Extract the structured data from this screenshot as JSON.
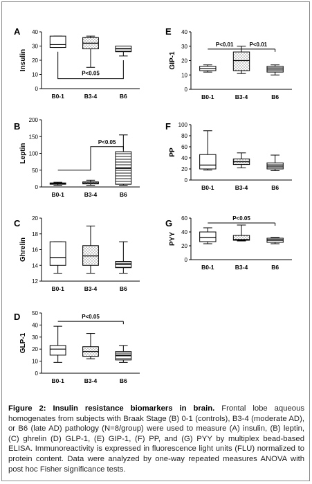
{
  "figure": {
    "caption_title": "Figure 2: Insulin resistance biomarkers in brain.",
    "caption_body": " Frontal lobe aqueous homogenates from subjects with Braak Stage (B) 0-1 (controls), B3-4 (moderate AD), or B6 (late AD) pathology (N=8/group) were used to measure (A) insulin, (B) leptin, (C) ghrelin (D) GLP-1, (E) GIP-1, (F) PP, and (G) PYY by multiplex bead-based ELISA. Immunoreactivity is expressed in fluorescence light units (FLU) normalized to protein content. Data were analyzed by one-way repeated measures ANOVA with post hoc Fisher significance tests."
  },
  "chart_data": [
    {
      "type": "boxplot",
      "letter": "A",
      "ylabel": "Insulin",
      "ylim": [
        0,
        40
      ],
      "yticks": [
        0,
        10,
        20,
        30,
        40
      ],
      "categories": [
        "B0-1",
        "B3-4",
        "B6"
      ],
      "series": [
        {
          "category": "B0-1",
          "min": 29,
          "q1": 29,
          "median": 31,
          "q3": 37,
          "max": 37
        },
        {
          "category": "B3-4",
          "min": 15,
          "q1": 28,
          "median": 32,
          "q3": 36,
          "max": 37
        },
        {
          "category": "B6",
          "min": 23,
          "q1": 26,
          "median": 28,
          "q3": 30,
          "max": 30
        }
      ],
      "annotations": [
        {
          "text": "P<0.05",
          "from": "B0-1",
          "to": "B6",
          "y": 7,
          "style": "bracket-down"
        }
      ]
    },
    {
      "type": "boxplot",
      "letter": "B",
      "ylabel": "Leptin",
      "ylim": [
        0,
        200
      ],
      "yticks": [
        0,
        50,
        100,
        150,
        200
      ],
      "categories": [
        "B0-1",
        "B3-4",
        "B6"
      ],
      "series": [
        {
          "category": "B0-1",
          "min": 5,
          "q1": 8,
          "median": 10,
          "q3": 12,
          "max": 14
        },
        {
          "category": "B3-4",
          "min": 5,
          "q1": 9,
          "median": 12,
          "q3": 15,
          "max": 20
        },
        {
          "category": "B6",
          "min": 5,
          "q1": 8,
          "median": 55,
          "q3": 105,
          "max": 155
        }
      ],
      "annotations": [
        {
          "text": "P<0.05",
          "from": "B0-1",
          "to": "B6",
          "y": 120,
          "style": "step"
        }
      ]
    },
    {
      "type": "boxplot",
      "letter": "C",
      "ylabel": "Ghrelin",
      "ylim": [
        12,
        20
      ],
      "yticks": [
        12,
        14,
        16,
        18,
        20
      ],
      "categories": [
        "B0-1",
        "B3-4",
        "B6"
      ],
      "series": [
        {
          "category": "B0-1",
          "min": 13,
          "q1": 14,
          "median": 15,
          "q3": 17,
          "max": 17
        },
        {
          "category": "B3-4",
          "min": 13,
          "q1": 14,
          "median": 15.2,
          "q3": 16.5,
          "max": 19
        },
        {
          "category": "B6",
          "min": 13,
          "q1": 13.7,
          "median": 14.2,
          "q3": 14.5,
          "max": 17
        }
      ],
      "annotations": []
    },
    {
      "type": "boxplot",
      "letter": "D",
      "ylabel": "GLP-1",
      "ylim": [
        0,
        50
      ],
      "yticks": [
        0,
        10,
        20,
        30,
        40,
        50
      ],
      "categories": [
        "B0-1",
        "B3-4",
        "B6"
      ],
      "series": [
        {
          "category": "B0-1",
          "min": 9,
          "q1": 15,
          "median": 20,
          "q3": 23,
          "max": 39
        },
        {
          "category": "B3-4",
          "min": 12,
          "q1": 14,
          "median": 18,
          "q3": 22,
          "max": 33
        },
        {
          "category": "B6",
          "min": 9,
          "q1": 11,
          "median": 15,
          "q3": 18,
          "max": 23
        }
      ],
      "annotations": [
        {
          "text": "P<0.05",
          "from": "B0-1",
          "to": "B6",
          "y": 43,
          "style": "line"
        }
      ]
    },
    {
      "type": "boxplot",
      "letter": "E",
      "ylabel": "GIP-1",
      "ylim": [
        0,
        40
      ],
      "yticks": [
        0,
        10,
        20,
        30,
        40
      ],
      "categories": [
        "B0-1",
        "B3-4",
        "B6"
      ],
      "series": [
        {
          "category": "B0-1",
          "min": 12,
          "q1": 13,
          "median": 14.5,
          "q3": 16,
          "max": 17
        },
        {
          "category": "B3-4",
          "min": 11,
          "q1": 13,
          "median": 20,
          "q3": 26,
          "max": 30
        },
        {
          "category": "B6",
          "min": 10,
          "q1": 12,
          "median": 14,
          "q3": 16,
          "max": 17
        }
      ],
      "annotations": [
        {
          "text": "P<0.01",
          "from": "B0-1",
          "to": "B3-4",
          "y": 28,
          "style": "line"
        },
        {
          "text": "P<0.01",
          "from": "B3-4",
          "to": "B6",
          "y": 28,
          "style": "line"
        }
      ]
    },
    {
      "type": "boxplot",
      "letter": "F",
      "ylabel": "PP",
      "ylim": [
        0,
        100
      ],
      "yticks": [
        0,
        20,
        40,
        60,
        80,
        100
      ],
      "categories": [
        "B0-1",
        "B3-4",
        "B6"
      ],
      "series": [
        {
          "category": "B0-1",
          "min": 18,
          "q1": 20,
          "median": 27,
          "q3": 46,
          "max": 89
        },
        {
          "category": "B3-4",
          "min": 22,
          "q1": 28,
          "median": 33,
          "q3": 38,
          "max": 49
        },
        {
          "category": "B6",
          "min": 17,
          "q1": 20,
          "median": 25,
          "q3": 31,
          "max": 45
        }
      ],
      "annotations": []
    },
    {
      "type": "boxplot",
      "letter": "G",
      "ylabel": "PYY",
      "ylim": [
        0,
        60
      ],
      "yticks": [
        0,
        20,
        40,
        60
      ],
      "categories": [
        "B0-1",
        "B3-4",
        "B6"
      ],
      "series": [
        {
          "category": "B0-1",
          "min": 23,
          "q1": 26,
          "median": 32,
          "q3": 40,
          "max": 46
        },
        {
          "category": "B3-4",
          "min": 27,
          "q1": 28,
          "median": 29,
          "q3": 35,
          "max": 50
        },
        {
          "category": "B6",
          "min": 23,
          "q1": 25,
          "median": 28,
          "q3": 31,
          "max": 32
        }
      ],
      "annotations": [
        {
          "text": "P<0.05",
          "from": "B0-1",
          "to": "B6",
          "y": 53,
          "style": "line"
        }
      ]
    }
  ],
  "styles": {
    "stroke": "#000000",
    "fill_pattern_colors": [
      "#ffffff",
      "#f2f2f2",
      "#ffffff"
    ]
  }
}
